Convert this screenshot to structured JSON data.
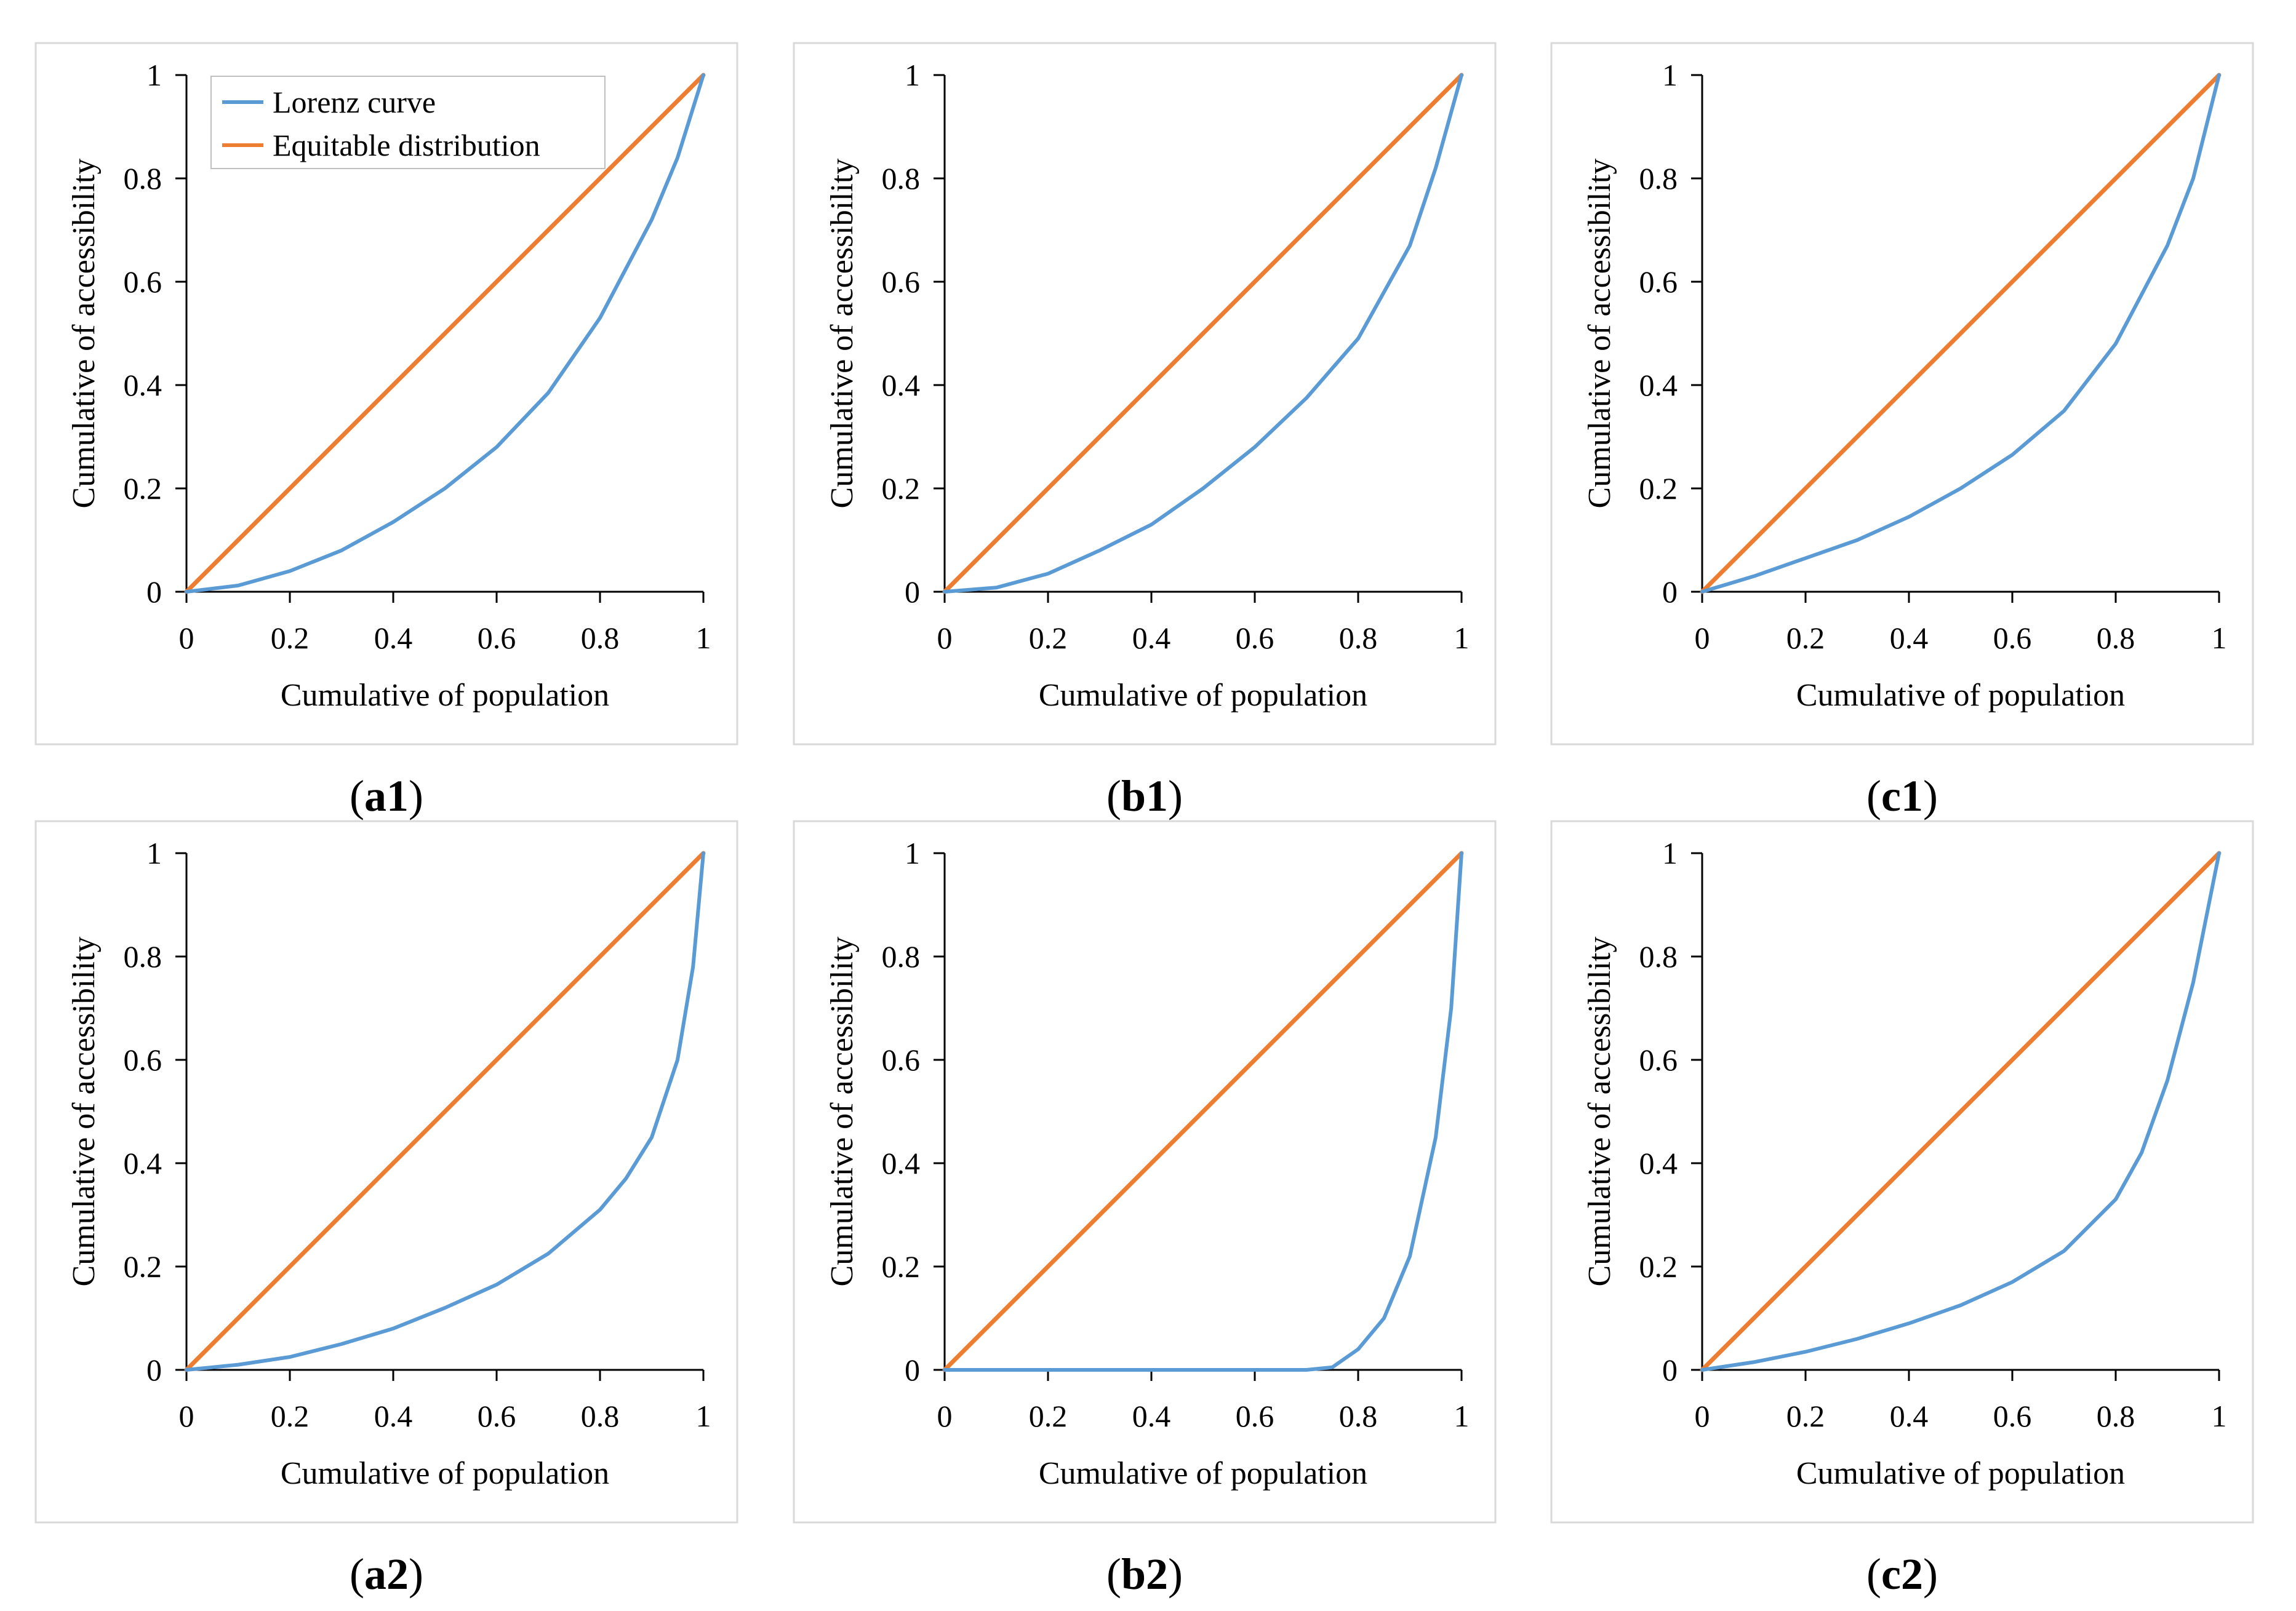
{
  "figure": {
    "colors": {
      "lorenz": "#5b9bd5",
      "equitable": "#ed7d31",
      "axis": "#000000",
      "frame": "#d9d9d9"
    }
  },
  "chart_data": [
    {
      "id": "a1",
      "type": "line",
      "panel_label": {
        "letter": "a",
        "number": "1"
      },
      "xlabel": "Cumulative of population",
      "ylabel": "Cumulative of accessibility",
      "xlim": [
        0,
        1
      ],
      "ylim": [
        0,
        1
      ],
      "xticks": [
        0,
        0.2,
        0.4,
        0.6,
        0.8,
        1
      ],
      "yticks": [
        0,
        0.2,
        0.4,
        0.6,
        0.8,
        1
      ],
      "xtick_labels": [
        "0",
        "0.2",
        "0.4",
        "0.6",
        "0.8",
        "1"
      ],
      "ytick_labels": [
        "0",
        "0.2",
        "0.4",
        "0.6",
        "0.8",
        "1"
      ],
      "legend": {
        "location": "top-left",
        "entries": [
          {
            "label": "Lorenz curve",
            "series": "lorenz"
          },
          {
            "label": "Equitable distribution",
            "series": "equitable"
          }
        ]
      },
      "series": [
        {
          "name": "Lorenz curve",
          "key": "lorenz",
          "x": [
            0,
            0.1,
            0.2,
            0.3,
            0.4,
            0.5,
            0.6,
            0.7,
            0.8,
            0.9,
            0.95,
            1
          ],
          "y": [
            0,
            0.012,
            0.04,
            0.08,
            0.135,
            0.2,
            0.28,
            0.385,
            0.53,
            0.72,
            0.84,
            1
          ]
        },
        {
          "name": "Equitable distribution",
          "key": "equitable",
          "x": [
            0,
            1
          ],
          "y": [
            0,
            1
          ]
        }
      ]
    },
    {
      "id": "b1",
      "type": "line",
      "panel_label": {
        "letter": "b",
        "number": "1"
      },
      "xlabel": "Cumulative of population",
      "ylabel": "Cumulative of accessibility",
      "xlim": [
        0,
        1
      ],
      "ylim": [
        0,
        1
      ],
      "xticks": [
        0,
        0.2,
        0.4,
        0.6,
        0.8,
        1
      ],
      "yticks": [
        0,
        0.2,
        0.4,
        0.6,
        0.8,
        1
      ],
      "xtick_labels": [
        "0",
        "0.2",
        "0.4",
        "0.6",
        "0.8",
        "1"
      ],
      "ytick_labels": [
        "0",
        "0.2",
        "0.4",
        "0.6",
        "0.8",
        "1"
      ],
      "legend": null,
      "series": [
        {
          "name": "Lorenz curve",
          "key": "lorenz",
          "x": [
            0,
            0.1,
            0.2,
            0.3,
            0.4,
            0.5,
            0.6,
            0.7,
            0.8,
            0.9,
            0.95,
            1
          ],
          "y": [
            0,
            0.008,
            0.035,
            0.08,
            0.13,
            0.2,
            0.28,
            0.375,
            0.49,
            0.67,
            0.82,
            1
          ]
        },
        {
          "name": "Equitable distribution",
          "key": "equitable",
          "x": [
            0,
            1
          ],
          "y": [
            0,
            1
          ]
        }
      ]
    },
    {
      "id": "c1",
      "type": "line",
      "panel_label": {
        "letter": "c",
        "number": "1"
      },
      "xlabel": "Cumulative of population",
      "ylabel": "Cumulative of accessibility",
      "xlim": [
        0,
        1
      ],
      "ylim": [
        0,
        1
      ],
      "xticks": [
        0,
        0.2,
        0.4,
        0.6,
        0.8,
        1
      ],
      "yticks": [
        0,
        0.2,
        0.4,
        0.6,
        0.8,
        1
      ],
      "xtick_labels": [
        "0",
        "0.2",
        "0.4",
        "0.6",
        "0.8",
        "1"
      ],
      "ytick_labels": [
        "0",
        "0.2",
        "0.4",
        "0.6",
        "0.8",
        "1"
      ],
      "legend": null,
      "series": [
        {
          "name": "Lorenz curve",
          "key": "lorenz",
          "x": [
            0,
            0.1,
            0.2,
            0.3,
            0.4,
            0.5,
            0.6,
            0.7,
            0.8,
            0.9,
            0.95,
            1
          ],
          "y": [
            0,
            0.03,
            0.065,
            0.1,
            0.145,
            0.2,
            0.265,
            0.35,
            0.48,
            0.67,
            0.8,
            1
          ]
        },
        {
          "name": "Equitable distribution",
          "key": "equitable",
          "x": [
            0,
            1
          ],
          "y": [
            0,
            1
          ]
        }
      ]
    },
    {
      "id": "a2",
      "type": "line",
      "panel_label": {
        "letter": "a",
        "number": "2"
      },
      "xlabel": "Cumulative of population",
      "ylabel": "Cumulative of accessibility",
      "xlim": [
        0,
        1
      ],
      "ylim": [
        0,
        1
      ],
      "xticks": [
        0,
        0.2,
        0.4,
        0.6,
        0.8,
        1
      ],
      "yticks": [
        0,
        0.2,
        0.4,
        0.6,
        0.8,
        1
      ],
      "xtick_labels": [
        "0",
        "0.2",
        "0.4",
        "0.6",
        "0.8",
        "1"
      ],
      "ytick_labels": [
        "0",
        "0.2",
        "0.4",
        "0.6",
        "0.8",
        "1"
      ],
      "legend": null,
      "series": [
        {
          "name": "Lorenz curve",
          "key": "lorenz",
          "x": [
            0,
            0.1,
            0.2,
            0.3,
            0.4,
            0.5,
            0.6,
            0.7,
            0.8,
            0.85,
            0.9,
            0.95,
            0.98,
            1
          ],
          "y": [
            0,
            0.01,
            0.025,
            0.05,
            0.08,
            0.12,
            0.165,
            0.225,
            0.31,
            0.37,
            0.45,
            0.6,
            0.78,
            1
          ]
        },
        {
          "name": "Equitable distribution",
          "key": "equitable",
          "x": [
            0,
            1
          ],
          "y": [
            0,
            1
          ]
        }
      ]
    },
    {
      "id": "b2",
      "type": "line",
      "panel_label": {
        "letter": "b",
        "number": "2"
      },
      "xlabel": "Cumulative of population",
      "ylabel": "Cumulative of accessibility",
      "xlim": [
        0,
        1
      ],
      "ylim": [
        0,
        1
      ],
      "xticks": [
        0,
        0.2,
        0.4,
        0.6,
        0.8,
        1
      ],
      "yticks": [
        0,
        0.2,
        0.4,
        0.6,
        0.8,
        1
      ],
      "xtick_labels": [
        "0",
        "0.2",
        "0.4",
        "0.6",
        "0.8",
        "1"
      ],
      "ytick_labels": [
        "0",
        "0.2",
        "0.4",
        "0.6",
        "0.8",
        "1"
      ],
      "legend": null,
      "series": [
        {
          "name": "Lorenz curve",
          "key": "lorenz",
          "x": [
            0,
            0.1,
            0.2,
            0.3,
            0.4,
            0.5,
            0.6,
            0.7,
            0.75,
            0.8,
            0.85,
            0.9,
            0.95,
            0.98,
            1
          ],
          "y": [
            0,
            0,
            0,
            0,
            0,
            0,
            0,
            0,
            0.005,
            0.04,
            0.1,
            0.22,
            0.45,
            0.7,
            1
          ]
        },
        {
          "name": "Equitable distribution",
          "key": "equitable",
          "x": [
            0,
            1
          ],
          "y": [
            0,
            1
          ]
        }
      ]
    },
    {
      "id": "c2",
      "type": "line",
      "panel_label": {
        "letter": "c",
        "number": "2"
      },
      "xlabel": "Cumulative of population",
      "ylabel": "Cumulative of accessibility",
      "xlim": [
        0,
        1
      ],
      "ylim": [
        0,
        1
      ],
      "xticks": [
        0,
        0.2,
        0.4,
        0.6,
        0.8,
        1
      ],
      "yticks": [
        0,
        0.2,
        0.4,
        0.6,
        0.8,
        1
      ],
      "xtick_labels": [
        "0",
        "0.2",
        "0.4",
        "0.6",
        "0.8",
        "1"
      ],
      "ytick_labels": [
        "0",
        "0.2",
        "0.4",
        "0.6",
        "0.8",
        "1"
      ],
      "legend": null,
      "series": [
        {
          "name": "Lorenz curve",
          "key": "lorenz",
          "x": [
            0,
            0.1,
            0.2,
            0.3,
            0.4,
            0.5,
            0.6,
            0.7,
            0.8,
            0.85,
            0.9,
            0.95,
            1
          ],
          "y": [
            0,
            0.015,
            0.035,
            0.06,
            0.09,
            0.125,
            0.17,
            0.23,
            0.33,
            0.42,
            0.56,
            0.75,
            1
          ]
        },
        {
          "name": "Equitable distribution",
          "key": "equitable",
          "x": [
            0,
            1
          ],
          "y": [
            0,
            1
          ]
        }
      ]
    }
  ]
}
